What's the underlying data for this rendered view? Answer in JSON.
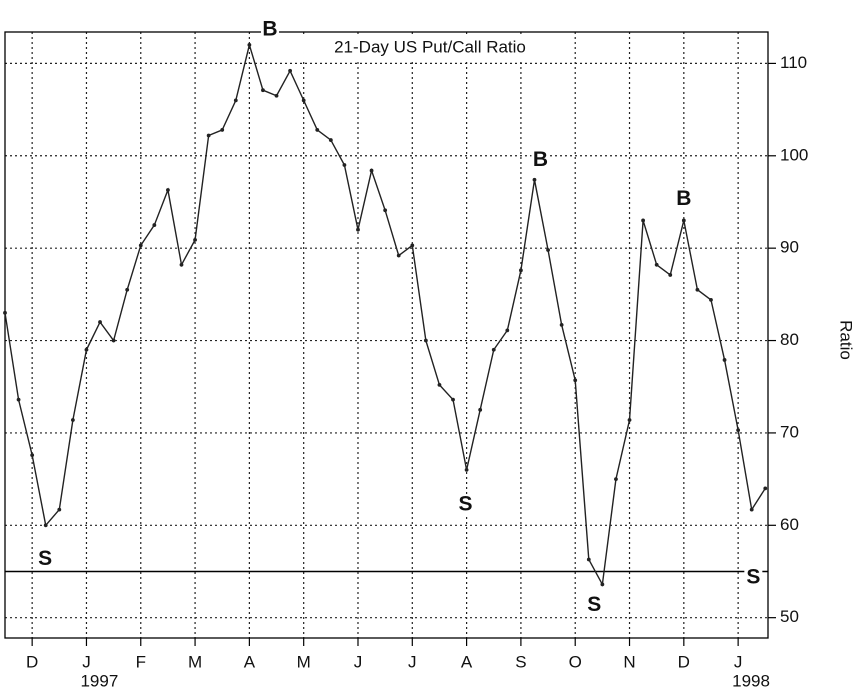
{
  "chart_data": {
    "type": "line",
    "title": "21-Day US Put/Call Ratio",
    "y_label": "Ratio",
    "x": [
      -0.5,
      -0.25,
      0,
      0.25,
      0.5,
      0.75,
      1,
      1.25,
      1.5,
      1.75,
      2,
      2.25,
      2.5,
      2.75,
      3,
      3.25,
      3.5,
      3.75,
      4,
      4.25,
      4.5,
      4.75,
      5,
      5.25,
      5.5,
      5.75,
      6,
      6.25,
      6.5,
      6.75,
      7,
      7.25,
      7.5,
      7.75,
      8,
      8.25,
      8.5,
      8.75,
      9,
      9.25,
      9.5,
      9.75,
      10,
      10.25,
      10.5,
      10.75,
      11,
      11.25,
      11.5,
      11.75,
      12,
      12.25,
      12.5,
      12.75,
      13,
      13.25,
      13.5
    ],
    "series": [
      {
        "name": "21-Day US Put/Call Ratio",
        "color": "#222222",
        "values": [
          83,
          73.6,
          67.6,
          60,
          61.7,
          71.4,
          79,
          82,
          80,
          85.5,
          90.3,
          92.5,
          96.3,
          88.2,
          90.9,
          102.2,
          102.8,
          106,
          112,
          107.1,
          106.5,
          109.2,
          106,
          102.8,
          101.7,
          99,
          92,
          98.4,
          94.1,
          89.2,
          90.3,
          80,
          75.2,
          73.6,
          66,
          72.5,
          79,
          81.1,
          87.6,
          97.4,
          89.8,
          81.7,
          75.7,
          56.3,
          53.6,
          65,
          71.4,
          93,
          88.2,
          87.1,
          93,
          85.5,
          84.4,
          77.9,
          70.3,
          61.7,
          64
        ]
      }
    ],
    "xlim": [
      -0.5,
      13.55
    ],
    "xticks": [
      {
        "value": 0,
        "label": "D"
      },
      {
        "value": 1,
        "label": "J"
      },
      {
        "value": 2,
        "label": "F"
      },
      {
        "value": 3,
        "label": "M"
      },
      {
        "value": 4,
        "label": "A"
      },
      {
        "value": 5,
        "label": "M"
      },
      {
        "value": 6,
        "label": "J"
      },
      {
        "value": 7,
        "label": "J"
      },
      {
        "value": 8,
        "label": "A"
      },
      {
        "value": 9,
        "label": "S"
      },
      {
        "value": 10,
        "label": "O"
      },
      {
        "value": 11,
        "label": "N"
      },
      {
        "value": 12,
        "label": "D"
      },
      {
        "value": 13,
        "label": "J"
      }
    ],
    "year_labels": [
      {
        "value": 1,
        "label": "1997"
      },
      {
        "value": 13,
        "label": "1998"
      }
    ],
    "ylim": [
      47.8,
      113.4
    ],
    "yticks": [
      50,
      60,
      70,
      80,
      90,
      100,
      110
    ],
    "hline": 55,
    "grid": true,
    "annotations": [
      {
        "text": "B",
        "x": 4.38,
        "y": 113.6
      },
      {
        "text": "B",
        "x": 9.36,
        "y": 99.5
      },
      {
        "text": "B",
        "x": 12.0,
        "y": 95.3
      },
      {
        "text": "S",
        "x": 0.24,
        "y": 56.3
      },
      {
        "text": "S",
        "x": 7.98,
        "y": 62.2
      },
      {
        "text": "S",
        "x": 10.35,
        "y": 51.3
      },
      {
        "text": "S",
        "x": 13.28,
        "y": 54.3
      }
    ]
  }
}
